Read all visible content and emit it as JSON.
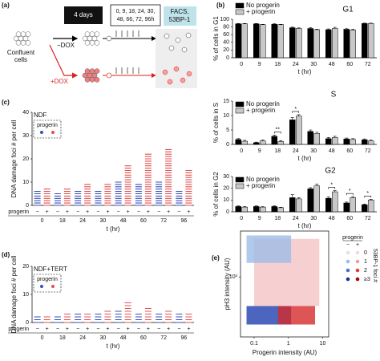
{
  "diagram": {
    "panel_label": "(a)",
    "duration": "4 days",
    "start": [
      "Confluent",
      "cells"
    ],
    "control": "−DOX",
    "treated": "+DOX",
    "timepoints": [
      "0, 9, 18, 24, 30,",
      "48, 66, 72, 96h"
    ],
    "assay": [
      "FACS,",
      "53BP-1"
    ]
  },
  "chart_data": [
    {
      "type": "bar",
      "panel_label": "(b)",
      "title": "G1",
      "y_label": "% of cells in G1",
      "x_label": "t (hr)",
      "categories": [
        "0",
        "9",
        "18",
        "24",
        "30",
        "48",
        "60",
        "72"
      ],
      "series": [
        {
          "name": "No progerin",
          "color": "#000000",
          "values": [
            88,
            88,
            87,
            78,
            76,
            73,
            74,
            89
          ],
          "errors": [
            1,
            1,
            1.5,
            1.5,
            2,
            2,
            1.5,
            1
          ]
        },
        {
          "name": "+ progerin",
          "color": "#c8c8c8",
          "values": [
            88,
            86,
            86,
            76,
            73,
            76,
            72,
            89
          ],
          "errors": [
            1,
            1,
            1,
            1.5,
            1.5,
            3,
            2,
            1
          ]
        }
      ],
      "ylim": [
        0,
        100
      ],
      "yticks": [
        0,
        20,
        40,
        60,
        80,
        100
      ],
      "annotations": []
    },
    {
      "type": "bar",
      "title": "S",
      "y_label": "% of cells in S",
      "x_label": "t (hr)",
      "categories": [
        "0",
        "9",
        "18",
        "24",
        "30",
        "48",
        "60",
        "72"
      ],
      "series": [
        {
          "name": "No progerin",
          "color": "#000000",
          "values": [
            1.7,
            0.6,
            2.8,
            8.5,
            4.5,
            2.0,
            1.9,
            1.6
          ],
          "errors": [
            0.3,
            0.2,
            0.4,
            0.8,
            0.5,
            0.4,
            0.3,
            0.3
          ]
        },
        {
          "name": "+ progerin",
          "color": "#c8c8c8",
          "values": [
            1.1,
            1.2,
            1.0,
            9.8,
            3.8,
            2.4,
            1.7,
            1.2
          ],
          "errors": [
            0.3,
            0.3,
            0.3,
            0.5,
            0.4,
            0.4,
            0.3,
            0.3
          ]
        }
      ],
      "ylim": [
        0,
        15
      ],
      "yticks": [
        0,
        5,
        10,
        15
      ],
      "annotations": [
        {
          "text": "**",
          "x": "18"
        },
        {
          "text": "*",
          "x": "24"
        }
      ]
    },
    {
      "type": "bar",
      "title": "G2",
      "y_label": "% of cells in G2",
      "x_label": "t (hr)",
      "categories": [
        "0",
        "9",
        "18",
        "24",
        "30",
        "48",
        "60",
        "72"
      ],
      "series": [
        {
          "name": "No progerin",
          "color": "#000000",
          "values": [
            4.5,
            4.5,
            4.5,
            12,
            19.5,
            11.5,
            7.5,
            6
          ],
          "errors": [
            0.5,
            0.5,
            0.5,
            2.5,
            1,
            1,
            0.7,
            0.6
          ]
        },
        {
          "name": "+ progerin",
          "color": "#c8c8c8",
          "values": [
            4,
            4,
            3.5,
            11,
            22,
            17,
            12,
            10
          ],
          "errors": [
            0.5,
            0.4,
            0.4,
            1,
            1.5,
            1,
            0.8,
            0.7
          ]
        }
      ],
      "ylim": [
        0,
        30
      ],
      "yticks": [
        0,
        10,
        20,
        30
      ],
      "annotations": [
        {
          "text": "*",
          "x": "48"
        },
        {
          "text": "*",
          "x": "60"
        },
        {
          "text": "*",
          "x": "72"
        }
      ]
    },
    {
      "type": "strip",
      "panel_label": "(c)",
      "cell_line": "NDF",
      "legend_title": "progerin",
      "group_label": "progerin",
      "y_label": "DNA damage foci # per cell",
      "x_label": "t (hr)",
      "categories": [
        "0",
        "18",
        "24",
        "30",
        "48",
        "60",
        "72",
        "96"
      ],
      "series": [
        {
          "name": "−",
          "color": "#3a4fb8",
          "values": [
            6,
            5,
            6,
            6,
            10,
            9,
            10,
            6
          ]
        },
        {
          "name": "+",
          "color": "#e05050",
          "values": [
            7,
            7,
            9,
            9,
            17,
            22,
            24,
            15
          ]
        }
      ],
      "ylim": [
        0,
        40
      ],
      "yticks": [
        0,
        10,
        20,
        30,
        40
      ]
    },
    {
      "type": "strip",
      "panel_label": "(d)",
      "cell_line": "NDF+TERT",
      "legend_title": "progerin",
      "group_label": "progerin",
      "y_label": "DNA damage foci # per cell",
      "x_label": "t (hr)",
      "categories": [
        "0",
        "18",
        "24",
        "30",
        "48",
        "60",
        "72",
        "96"
      ],
      "series": [
        {
          "name": "−",
          "color": "#3a4fb8",
          "values": [
            2,
            2,
            3,
            3,
            4,
            3,
            3,
            3
          ]
        },
        {
          "name": "+",
          "color": "#e05050",
          "values": [
            2,
            3,
            3,
            4,
            7,
            5,
            4,
            3
          ]
        }
      ],
      "ylim": [
        0,
        20
      ],
      "yticks": [
        0,
        10,
        20
      ]
    },
    {
      "type": "scatter",
      "panel_label": "(e)",
      "x_label": "Progerin intensity (AU)",
      "y_label": "pH3 intensity (AU)",
      "log_x": true,
      "log_y": true,
      "xlim": [
        0.04,
        15
      ],
      "xticks": [
        0.1,
        1,
        10
      ],
      "ylim": [
        20,
        20000
      ],
      "yticks": [
        {
          "value": 1000,
          "label": "10³"
        }
      ],
      "regions": [
        {
          "x": [
            0.1,
            8
          ],
          "y": [
            150,
            12000
          ],
          "color": "#f4c4c4"
        },
        {
          "x": [
            0.06,
            1.2
          ],
          "y": [
            2500,
            15000
          ],
          "color": "#9dbbe6"
        },
        {
          "x": [
            0.06,
            1.2
          ],
          "y": [
            45,
            150
          ],
          "color": "#1f3fae"
        },
        {
          "x": [
            0.5,
            6
          ],
          "y": [
            45,
            150
          ],
          "color": "#d42a2a"
        }
      ],
      "legend": {
        "title": "progerin",
        "columns": [
          "−",
          "+"
        ],
        "rows": [
          "0",
          "1",
          "2",
          "≥3"
        ],
        "title_side": "53BP-1 foci #",
        "colors": [
          [
            "#d8e4f4",
            "#9dbbe6",
            "#4a72c8",
            "#1a2f9a"
          ],
          [
            "#f7d6d6",
            "#f0a0a0",
            "#e04040",
            "#b00000"
          ]
        ]
      }
    }
  ]
}
